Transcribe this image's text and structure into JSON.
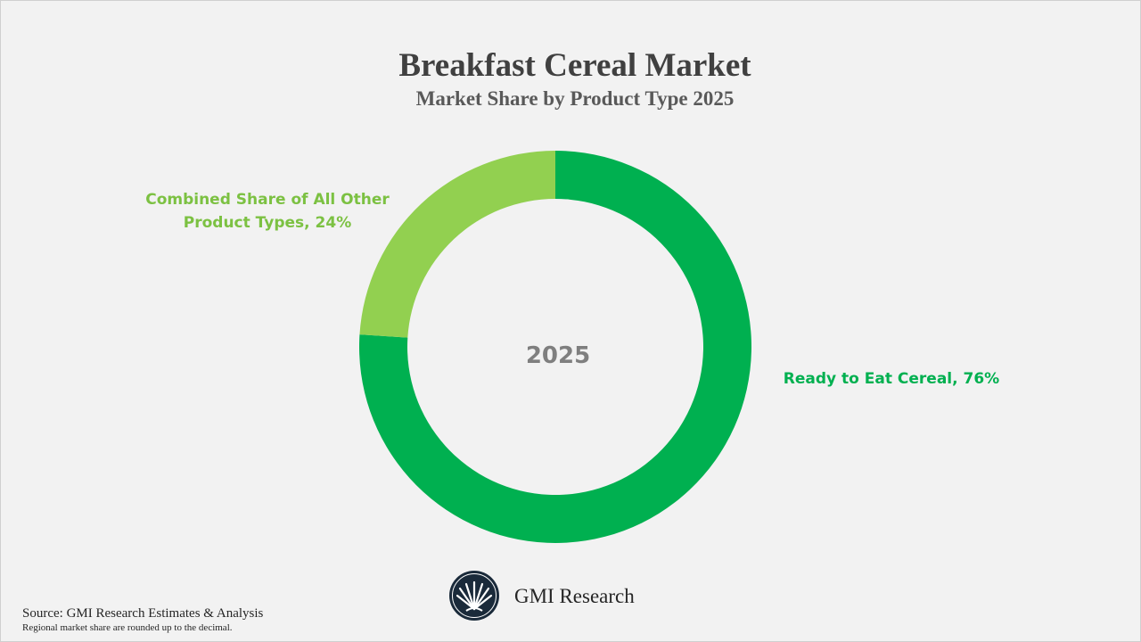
{
  "header": {
    "title": "Breakfast Cereal Market",
    "subtitle": "Market Share by Product Type 2025"
  },
  "chart_data": {
    "type": "pie",
    "style": "donut",
    "title": "Breakfast Cereal Market",
    "subtitle": "Market Share by Product Type 2025",
    "center_label": "2025",
    "slices": [
      {
        "label": "Ready to Eat Cereal, 76%",
        "category": "Ready to Eat Cereal",
        "value": 76,
        "color": "#00b050"
      },
      {
        "label": "Combined Share of All Other Product Types, 24%",
        "category": "Combined Share of All Other Product Types",
        "value": 24,
        "color": "#92d050"
      }
    ],
    "legend": "none",
    "start_angle": "top, clockwise"
  },
  "labels": {
    "other_line1": "Combined Share of All Other",
    "other_line2": "Product Types, 24%",
    "rte": "Ready to Eat Cereal, 76%"
  },
  "footer": {
    "brand": "GMI Research",
    "source": "Source: GMI Research Estimates & Analysis",
    "note": "Regional market share are rounded up to the decimal."
  },
  "colors": {
    "background": "#f2f2f2",
    "title": "#404040",
    "subtitle": "#595959",
    "center_label": "#7f7f7f",
    "logo": "#1a2a3a"
  },
  "icons": {
    "logo": "fan-palm-logo-icon"
  }
}
